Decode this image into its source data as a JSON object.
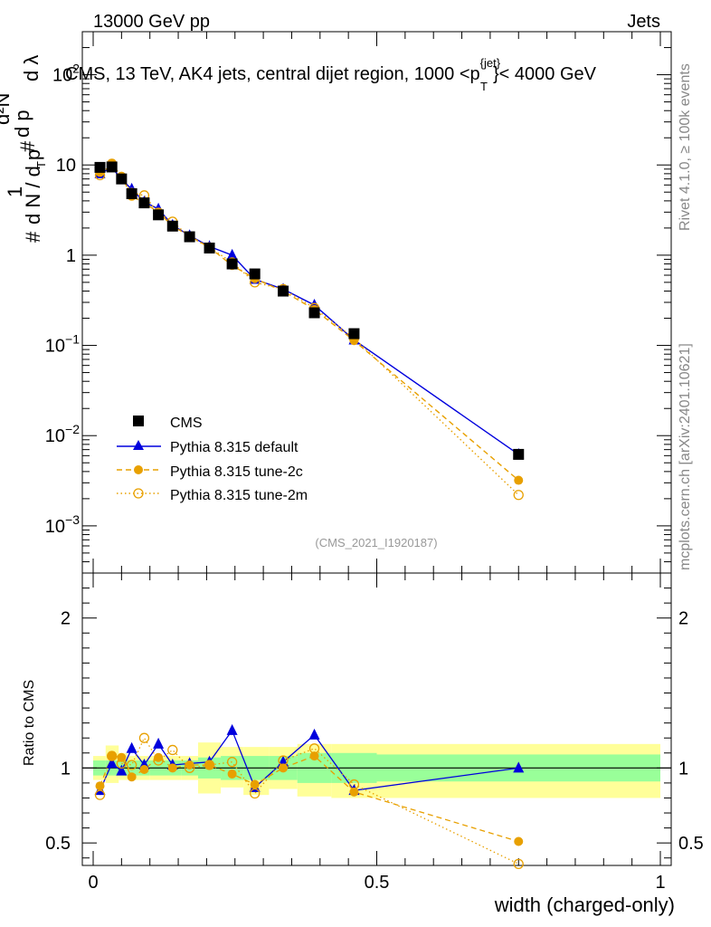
{
  "header": {
    "left": "13000 GeV pp",
    "right": "Jets",
    "title": "CMS, 13 TeV, AK4 jets, central dijet region, 1000 <p",
    "title_sup": "{jet}",
    "title_sub": "T",
    "title_tail": "}< 4000 GeV"
  },
  "side": {
    "rivet": "Rivet 4.1.0, ≥ 100k events",
    "mcplots": "mcplots.cern.ch [arXiv:2401.10621]"
  },
  "ref_label": "(CMS_2021_I1920187)",
  "ylabel_main": {
    "hash1": "#",
    "one": "1",
    "dN": "d N / d p",
    "sub": "T",
    "hash2": "#",
    "d2N": "d²N",
    "dp": "d p",
    "dl": "d λ"
  },
  "ylabel_ratio": "Ratio to CMS",
  "xlabel": "width (charged-only)",
  "chart_data": [
    {
      "type": "scatter",
      "panel": "main",
      "title": "CMS, 13 TeV, AK4 jets, central dijet region, 1000 <p_T^{jet}< 4000 GeV",
      "yscale": "log",
      "xlim": [
        0,
        1
      ],
      "ylim": [
        0.0003,
        300
      ],
      "ytick_labels": [
        "10^{-3}",
        "10^{-2}",
        "10^{-1}",
        "1",
        "10",
        "10^2"
      ],
      "xtick_labels": [
        "0",
        "0.5",
        "1"
      ],
      "legend": {
        "placement": "bottom-left",
        "entries": [
          "CMS",
          "Pythia 8.315 default",
          "Pythia 8.315 tune-2c",
          "Pythia 8.315 tune-2m"
        ]
      },
      "x": [
        0.012,
        0.033,
        0.05,
        0.068,
        0.09,
        0.115,
        0.14,
        0.17,
        0.205,
        0.245,
        0.285,
        0.335,
        0.39,
        0.46,
        0.75
      ],
      "series": [
        {
          "name": "CMS",
          "color": "#000000",
          "marker": "square",
          "values": [
            9.4,
            9.5,
            7.0,
            4.8,
            3.8,
            2.8,
            2.1,
            1.6,
            1.2,
            0.8,
            0.62,
            0.4,
            0.23,
            0.135,
            0.0062
          ]
        },
        {
          "name": "Pythia 8.315 default",
          "color": "#0000dd",
          "marker": "triangle",
          "line": "solid",
          "values": [
            8.0,
            9.4,
            6.9,
            5.4,
            3.9,
            3.25,
            2.15,
            1.65,
            1.25,
            1.0,
            0.54,
            0.42,
            0.28,
            0.115,
            0.0062
          ]
        },
        {
          "name": "Pythia 8.315 tune-2c",
          "color": "#e8a000",
          "marker": "circle",
          "line": "dashed",
          "values": [
            8.3,
            10.2,
            7.5,
            4.5,
            3.8,
            3.0,
            2.1,
            1.63,
            1.22,
            0.77,
            0.55,
            0.4,
            0.25,
            0.113,
            0.0032
          ]
        },
        {
          "name": "Pythia 8.315 tune-2m",
          "color": "#e8a000",
          "marker": "open-circle",
          "line": "dotted",
          "values": [
            7.7,
            10.3,
            7.2,
            4.9,
            4.6,
            2.95,
            2.35,
            1.6,
            1.22,
            0.83,
            0.5,
            0.42,
            0.26,
            0.12,
            0.0022
          ]
        }
      ]
    },
    {
      "type": "scatter",
      "panel": "ratio",
      "ylabel": "Ratio to CMS",
      "xlabel": "width (charged-only)",
      "xlim": [
        0,
        1
      ],
      "ylim": [
        0.35,
        2.3
      ],
      "ytick_labels": [
        "0.5",
        "1",
        "2"
      ],
      "xtick_labels": [
        "0",
        "0.5",
        "1"
      ],
      "x": [
        0.012,
        0.033,
        0.05,
        0.068,
        0.09,
        0.115,
        0.14,
        0.17,
        0.205,
        0.245,
        0.285,
        0.335,
        0.39,
        0.46,
        0.75
      ],
      "bands": [
        {
          "x0": 0.0,
          "x1": 0.022,
          "inner": [
            0.95,
            1.05
          ],
          "outer": [
            0.92,
            1.08
          ]
        },
        {
          "x0": 0.022,
          "x1": 0.045,
          "inner": [
            0.95,
            1.05
          ],
          "outer": [
            0.9,
            1.15
          ]
        },
        {
          "x0": 0.045,
          "x1": 0.06,
          "inner": [
            0.95,
            1.05
          ],
          "outer": [
            0.92,
            1.1
          ]
        },
        {
          "x0": 0.06,
          "x1": 0.08,
          "inner": [
            0.95,
            1.05
          ],
          "outer": [
            0.92,
            1.08
          ]
        },
        {
          "x0": 0.08,
          "x1": 0.1,
          "inner": [
            0.95,
            1.05
          ],
          "outer": [
            0.92,
            1.08
          ]
        },
        {
          "x0": 0.1,
          "x1": 0.13,
          "inner": [
            0.95,
            1.05
          ],
          "outer": [
            0.92,
            1.08
          ]
        },
        {
          "x0": 0.13,
          "x1": 0.155,
          "inner": [
            0.95,
            1.05
          ],
          "outer": [
            0.92,
            1.08
          ]
        },
        {
          "x0": 0.155,
          "x1": 0.185,
          "inner": [
            0.95,
            1.05
          ],
          "outer": [
            0.92,
            1.08
          ]
        },
        {
          "x0": 0.185,
          "x1": 0.225,
          "inner": [
            0.93,
            1.07
          ],
          "outer": [
            0.83,
            1.17
          ]
        },
        {
          "x0": 0.225,
          "x1": 0.265,
          "inner": [
            0.92,
            1.08
          ],
          "outer": [
            0.87,
            1.14
          ]
        },
        {
          "x0": 0.265,
          "x1": 0.31,
          "inner": [
            0.92,
            1.08
          ],
          "outer": [
            0.82,
            1.14
          ]
        },
        {
          "x0": 0.31,
          "x1": 0.36,
          "inner": [
            0.92,
            1.08
          ],
          "outer": [
            0.86,
            1.14
          ]
        },
        {
          "x0": 0.36,
          "x1": 0.42,
          "inner": [
            0.9,
            1.1
          ],
          "outer": [
            0.81,
            1.16
          ]
        },
        {
          "x0": 0.42,
          "x1": 0.5,
          "inner": [
            0.9,
            1.1
          ],
          "outer": [
            0.8,
            1.16
          ]
        },
        {
          "x0": 0.5,
          "x1": 1.0,
          "inner": [
            0.91,
            1.09
          ],
          "outer": [
            0.8,
            1.16
          ]
        }
      ],
      "series": [
        {
          "name": "Pythia 8.315 default",
          "color": "#0000dd",
          "values": [
            0.85,
            1.03,
            0.98,
            1.13,
            1.02,
            1.16,
            1.02,
            1.03,
            1.04,
            1.25,
            0.87,
            1.04,
            1.22,
            0.85,
            1.0
          ]
        },
        {
          "name": "Pythia 8.315 tune-2c",
          "color": "#e8a000",
          "values": [
            0.88,
            1.08,
            1.07,
            0.94,
            0.99,
            1.07,
            1.0,
            1.02,
            1.02,
            0.96,
            0.89,
            1.0,
            1.08,
            0.84,
            0.51
          ]
        },
        {
          "name": "Pythia 8.315 tune-2m",
          "color": "#e8a000",
          "values": [
            0.82,
            1.08,
            1.03,
            1.02,
            1.2,
            1.05,
            1.12,
            1.0,
            1.02,
            1.04,
            0.83,
            1.05,
            1.13,
            0.89,
            0.36
          ]
        }
      ]
    }
  ]
}
